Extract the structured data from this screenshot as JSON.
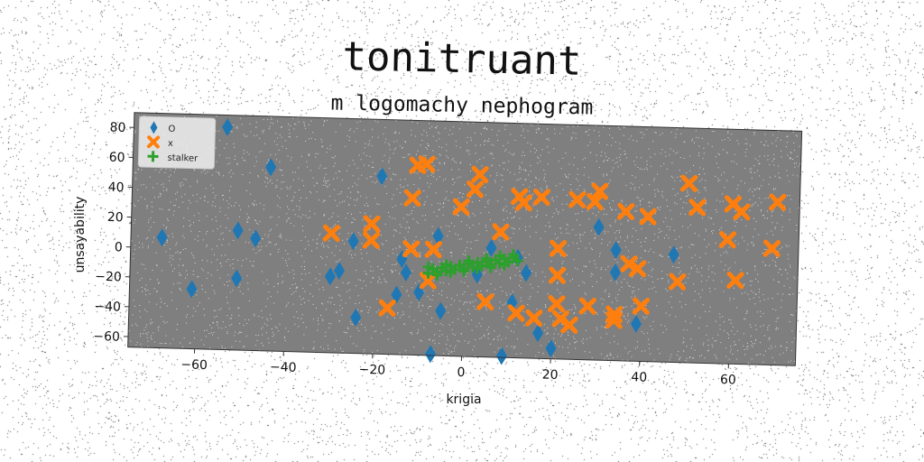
{
  "chart_data": {
    "type": "scatter",
    "title": "tonitruant",
    "subtitle": "m logomachy nephogram",
    "xlabel": "krigia",
    "ylabel": "unsayability",
    "xlim": [
      -75,
      75
    ],
    "ylim": [
      -67,
      90
    ],
    "xticks": [
      -60,
      -40,
      -20,
      0,
      20,
      40,
      60
    ],
    "yticks": [
      -60,
      -40,
      -20,
      0,
      20,
      40,
      60,
      80
    ],
    "grid": false,
    "legend_position": "top-left",
    "background": "#7f7f7f",
    "series": [
      {
        "name": "O",
        "marker": "diamond",
        "color": "#1f77b4",
        "points": [
          [
            -54,
            82
          ],
          [
            -44,
            56
          ],
          [
            -19,
            52
          ],
          [
            -68,
            7
          ],
          [
            -51,
            13
          ],
          [
            -47,
            8
          ],
          [
            -61,
            -27
          ],
          [
            -51,
            -19
          ],
          [
            -28,
            -12
          ],
          [
            -30,
            -16
          ],
          [
            -25,
            8
          ],
          [
            -24,
            -43
          ],
          [
            -15,
            -27
          ],
          [
            -13,
            -12
          ],
          [
            -10,
            -25
          ],
          [
            -14,
            -3
          ],
          [
            -5,
            -37
          ],
          [
            -7,
            -66
          ],
          [
            3,
            -12
          ],
          [
            6,
            6
          ],
          [
            9,
            -66
          ],
          [
            11,
            -30
          ],
          [
            14,
            -10
          ],
          [
            17,
            -50
          ],
          [
            20,
            -60
          ],
          [
            30,
            22
          ],
          [
            34,
            7
          ],
          [
            34,
            -8
          ],
          [
            39,
            -42
          ],
          [
            47,
            5
          ],
          [
            -6,
            13
          ],
          [
            12,
            0
          ]
        ]
      },
      {
        "name": "x",
        "marker": "x",
        "color": "#ff7f0e",
        "points": [
          [
            -11,
            60
          ],
          [
            -9,
            61
          ],
          [
            3,
            55
          ],
          [
            2,
            45
          ],
          [
            -12,
            38
          ],
          [
            -1,
            33
          ],
          [
            12,
            41
          ],
          [
            13,
            37
          ],
          [
            17,
            41
          ],
          [
            25,
            40
          ],
          [
            29,
            39
          ],
          [
            30,
            46
          ],
          [
            36,
            33
          ],
          [
            41,
            30
          ],
          [
            50,
            53
          ],
          [
            52,
            37
          ],
          [
            60,
            40
          ],
          [
            62,
            35
          ],
          [
            70,
            42
          ],
          [
            -30,
            13
          ],
          [
            -21,
            20
          ],
          [
            -21,
            9
          ],
          [
            -12,
            4
          ],
          [
            -7,
            4
          ],
          [
            8,
            17
          ],
          [
            21,
            7
          ],
          [
            59,
            16
          ],
          [
            69,
            11
          ],
          [
            21,
            -11
          ],
          [
            37,
            -2
          ],
          [
            39,
            -5
          ],
          [
            48,
            -13
          ],
          [
            61,
            -11
          ],
          [
            -8,
            -17
          ],
          [
            -17,
            -36
          ],
          [
            5,
            -30
          ],
          [
            12,
            -37
          ],
          [
            16,
            -40
          ],
          [
            21,
            -30
          ],
          [
            22,
            -40
          ],
          [
            24,
            -44
          ],
          [
            28,
            -31
          ],
          [
            34,
            -36
          ],
          [
            34,
            -40
          ],
          [
            40,
            -30
          ]
        ]
      },
      {
        "name": "stalker",
        "marker": "plus",
        "color": "#2ca02c",
        "points": [
          [
            -8,
            -12
          ],
          [
            -7,
            -9
          ],
          [
            -6,
            -11
          ],
          [
            -5,
            -8
          ],
          [
            -4,
            -10
          ],
          [
            -3,
            -7
          ],
          [
            -2,
            -9
          ],
          [
            -1,
            -6
          ],
          [
            0,
            -8
          ],
          [
            1,
            -5
          ],
          [
            2,
            -7
          ],
          [
            3,
            -4
          ],
          [
            4,
            -6
          ],
          [
            5,
            -3
          ],
          [
            6,
            -5
          ],
          [
            7,
            -2
          ],
          [
            8,
            -4
          ],
          [
            9,
            -1
          ],
          [
            10,
            -3
          ],
          [
            11,
            0
          ],
          [
            12,
            -2
          ],
          [
            -6,
            -13
          ],
          [
            -3,
            -11
          ],
          [
            0,
            -10
          ],
          [
            3,
            -8
          ],
          [
            6,
            -7
          ],
          [
            9,
            -5
          ],
          [
            -8,
            -8
          ],
          [
            -4,
            -6
          ],
          [
            1,
            -3
          ],
          [
            5,
            -1
          ],
          [
            8,
            1
          ],
          [
            11,
            2
          ]
        ]
      }
    ]
  }
}
